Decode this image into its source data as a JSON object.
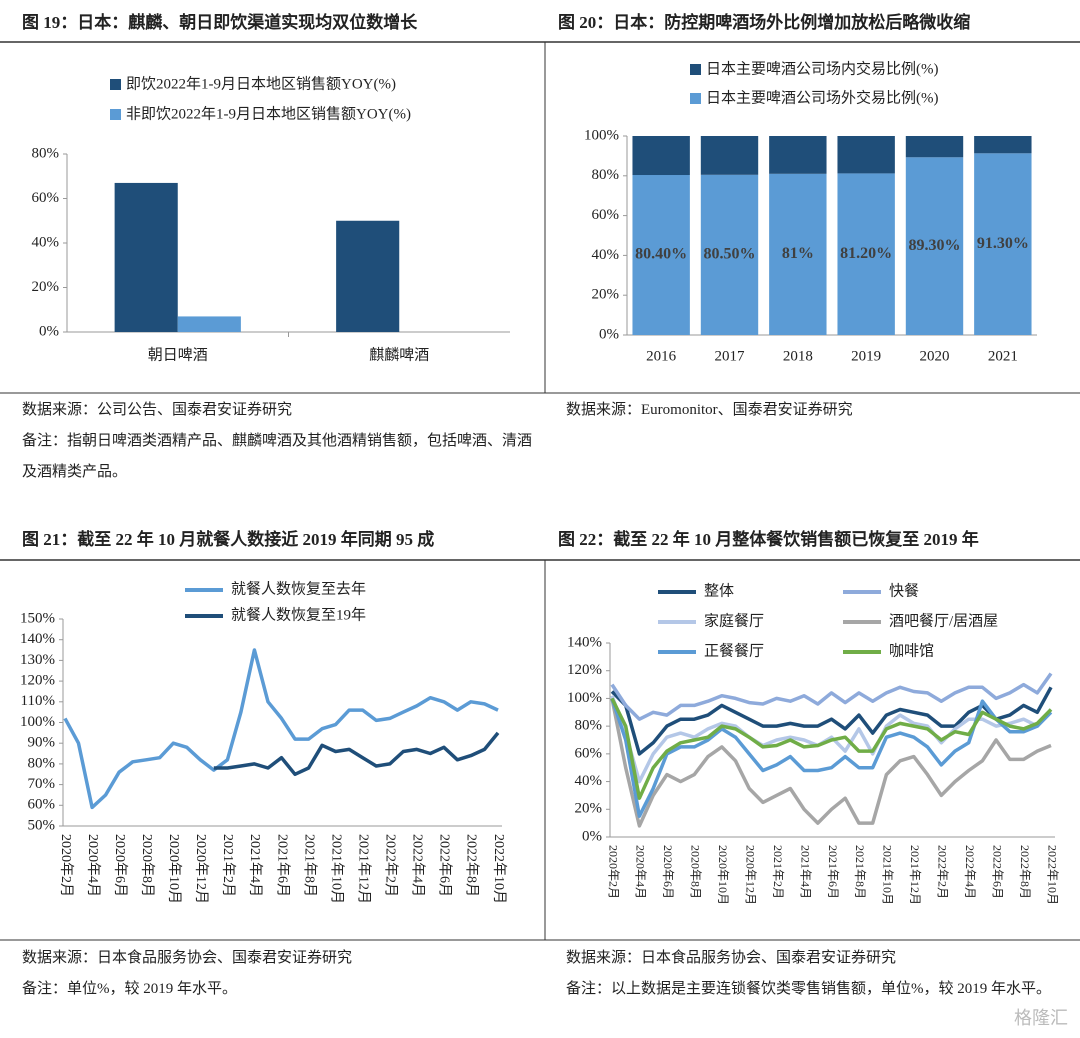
{
  "chart_data": [
    {
      "type": "bar",
      "title": "图 19：日本：麒麟、朝日即饮渠道实现均双位数增长",
      "categories": [
        "朝日啤酒",
        "麒麟啤酒"
      ],
      "series": [
        {
          "name": "即饮2022年1-9月日本地区销售额YOY(%)",
          "color": "#1f4e79",
          "values": [
            67,
            50
          ]
        },
        {
          "name": "非即饮2022年1-9月日本地区销售额YOY(%)",
          "color": "#5b9bd5",
          "values": [
            7,
            null
          ]
        }
      ],
      "ylim": [
        0,
        80
      ],
      "yticks": [
        {
          "value": 0,
          "label": "0%"
        },
        {
          "value": 20,
          "label": "20%"
        },
        {
          "value": 40,
          "label": "40%"
        },
        {
          "value": 60,
          "label": "60%"
        },
        {
          "value": 80,
          "label": "80%"
        }
      ],
      "source": "数据来源：公司公告、国泰君安证券研究",
      "note": "备注：指朝日啤酒类酒精产品、麒麟啤酒及其他酒精销售额，包括啤酒、清酒及酒精类产品。"
    },
    {
      "type": "stacked_bar",
      "title": "图 20：日本：防控期啤酒场外比例增加放松后略微收缩",
      "categories": [
        "2016",
        "2017",
        "2018",
        "2019",
        "2020",
        "2021"
      ],
      "series": [
        {
          "name": "日本主要啤酒公司场内交易比例(%)",
          "color": "#1f4e79",
          "values": [
            19.6,
            19.5,
            19,
            18.8,
            10.7,
            8.7
          ]
        },
        {
          "name": "日本主要啤酒公司场外交易比例(%)",
          "color": "#5b9bd5",
          "values": [
            80.4,
            80.5,
            81,
            81.2,
            89.3,
            91.3
          ],
          "value_labels": [
            "80.40%",
            "80.50%",
            "81%",
            "81.20%",
            "89.30%",
            "91.30%"
          ]
        }
      ],
      "ylim": [
        0,
        100
      ],
      "yticks": [
        {
          "value": 0,
          "label": "0%"
        },
        {
          "value": 20,
          "label": "20%"
        },
        {
          "value": 40,
          "label": "40%"
        },
        {
          "value": 60,
          "label": "60%"
        },
        {
          "value": 80,
          "label": "80%"
        },
        {
          "value": 100,
          "label": "100%"
        }
      ],
      "source": "数据来源：Euromonitor、国泰君安证券研究"
    },
    {
      "type": "line",
      "title": "图 21：截至 22 年 10 月就餐人数接近 2019 年同期 95 成",
      "categories": [
        "2020年2月",
        null,
        "2020年4月",
        null,
        "2020年6月",
        null,
        "2020年8月",
        null,
        "2020年10月",
        null,
        "2020年12月",
        null,
        "2021年2月",
        null,
        "2021年4月",
        null,
        "2021年6月",
        null,
        "2021年8月",
        null,
        "2021年10月",
        null,
        "2021年12月",
        null,
        "2022年2月",
        null,
        "2022年4月",
        null,
        "2022年6月",
        null,
        "2022年8月",
        null,
        "2022年10月"
      ],
      "series": [
        {
          "name": "就餐人数恢复至去年",
          "color": "#5b9bd5",
          "values": [
            102,
            90,
            59,
            65,
            76,
            81,
            82,
            83,
            90,
            88,
            82,
            77,
            82,
            105,
            135,
            110,
            102,
            92,
            92,
            97,
            99,
            106,
            106,
            101,
            102,
            105,
            108,
            112,
            110,
            106,
            110,
            109,
            106
          ]
        },
        {
          "name": "就餐人数恢复至19年",
          "color": "#1f4e79",
          "values": [
            null,
            null,
            null,
            null,
            null,
            null,
            null,
            null,
            null,
            null,
            null,
            78,
            78,
            79,
            80,
            78,
            83,
            75,
            78,
            89,
            86,
            87,
            83,
            79,
            80,
            86,
            87,
            85,
            88,
            82,
            84,
            87,
            95
          ]
        }
      ],
      "ylim": [
        50,
        150
      ],
      "yticks": [
        {
          "value": 50,
          "label": "50%"
        },
        {
          "value": 60,
          "label": "60%"
        },
        {
          "value": 70,
          "label": "70%"
        },
        {
          "value": 80,
          "label": "80%"
        },
        {
          "value": 90,
          "label": "90%"
        },
        {
          "value": 100,
          "label": "100%"
        },
        {
          "value": 110,
          "label": "110%"
        },
        {
          "value": 120,
          "label": "120%"
        },
        {
          "value": 130,
          "label": "130%"
        },
        {
          "value": 140,
          "label": "140%"
        },
        {
          "value": 150,
          "label": "150%"
        }
      ],
      "source": "数据来源：日本食品服务协会、国泰君安证券研究",
      "note": "备注：单位%，较 2019 年水平。"
    },
    {
      "type": "line",
      "title": "图 22：截至 22 年 10 月整体餐饮销售额已恢复至 2019 年",
      "categories": [
        "2020年2月",
        null,
        "2020年4月",
        null,
        "2020年6月",
        null,
        "2020年8月",
        null,
        "2020年10月",
        null,
        "2020年12月",
        null,
        "2021年2月",
        null,
        "2021年4月",
        null,
        "2021年6月",
        null,
        "2021年8月",
        null,
        "2021年10月",
        null,
        "2021年12月",
        null,
        "2022年2月",
        null,
        "2022年4月",
        null,
        "2022年6月",
        null,
        "2022年8月",
        null,
        "2022年10月"
      ],
      "series": [
        {
          "name": "整体",
          "color": "#1f4e79",
          "values": [
            105,
            95,
            60,
            68,
            80,
            85,
            85,
            88,
            95,
            90,
            85,
            80,
            80,
            82,
            80,
            80,
            85,
            78,
            88,
            75,
            88,
            92,
            90,
            88,
            80,
            80,
            90,
            95,
            85,
            88,
            95,
            90,
            108
          ]
        },
        {
          "name": "快餐",
          "color": "#8eaadb",
          "values": [
            110,
            95,
            85,
            90,
            88,
            95,
            95,
            98,
            102,
            100,
            97,
            96,
            100,
            98,
            102,
            96,
            104,
            97,
            104,
            98,
            104,
            108,
            105,
            104,
            98,
            104,
            108,
            108,
            100,
            104,
            110,
            104,
            118
          ]
        },
        {
          "name": "家庭餐厅",
          "color": "#b4c7e7",
          "values": [
            102,
            75,
            40,
            60,
            72,
            75,
            72,
            78,
            82,
            80,
            72,
            66,
            70,
            72,
            70,
            66,
            72,
            62,
            78,
            60,
            80,
            88,
            82,
            80,
            68,
            78,
            85,
            85,
            80,
            82,
            85,
            80,
            92
          ]
        },
        {
          "name": "酒吧餐厅/居酒屋",
          "color": "#a6a6a6",
          "values": [
            100,
            50,
            8,
            30,
            45,
            40,
            45,
            58,
            65,
            55,
            35,
            25,
            30,
            35,
            20,
            10,
            20,
            28,
            10,
            10,
            45,
            55,
            58,
            45,
            30,
            40,
            48,
            55,
            70,
            56,
            56,
            62,
            66
          ]
        },
        {
          "name": "正餐餐厅",
          "color": "#5b9bd5",
          "values": [
            100,
            70,
            15,
            35,
            60,
            65,
            65,
            70,
            78,
            72,
            60,
            48,
            52,
            58,
            48,
            48,
            50,
            58,
            50,
            50,
            72,
            75,
            72,
            65,
            52,
            62,
            68,
            98,
            85,
            76,
            76,
            80,
            90
          ]
        },
        {
          "name": "咖啡馆",
          "color": "#70ad47",
          "values": [
            100,
            80,
            28,
            50,
            62,
            68,
            70,
            72,
            80,
            78,
            72,
            65,
            66,
            70,
            65,
            66,
            70,
            72,
            62,
            62,
            78,
            82,
            80,
            78,
            70,
            76,
            74,
            90,
            85,
            80,
            78,
            82,
            92
          ]
        }
      ],
      "ylim": [
        0,
        140
      ],
      "yticks": [
        {
          "value": 0,
          "label": "0%"
        },
        {
          "value": 20,
          "label": "20%"
        },
        {
          "value": 40,
          "label": "40%"
        },
        {
          "value": 60,
          "label": "60%"
        },
        {
          "value": 80,
          "label": "80%"
        },
        {
          "value": 100,
          "label": "100%"
        },
        {
          "value": 120,
          "label": "120%"
        },
        {
          "value": 140,
          "label": "140%"
        }
      ],
      "source": "数据来源：日本食品服务协会、国泰君安证券研究",
      "note": "备注：以上数据是主要连锁餐饮类零售销售额，单位%，较 2019 年水平。"
    }
  ],
  "watermark": "格隆汇"
}
